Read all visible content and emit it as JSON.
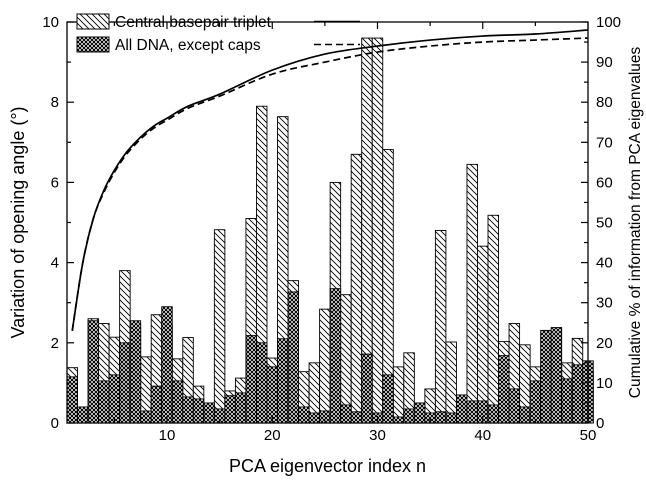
{
  "chart_data": {
    "type": "bar",
    "xlabel": "PCA eigenvector index n",
    "ylabel": "Variation of opening angle (°)",
    "y2label": "Cumulative % of information from PCA eigenvalues",
    "xlim": [
      0.5,
      50
    ],
    "ylim": [
      0,
      10
    ],
    "y2lim": [
      0,
      100
    ],
    "x_ticks": [
      10,
      20,
      30,
      40,
      50
    ],
    "y_ticks": [
      0,
      2,
      4,
      6,
      8,
      10
    ],
    "y2_ticks": [
      0,
      10,
      20,
      30,
      40,
      50,
      60,
      70,
      80,
      90,
      100
    ],
    "legend_position": "top-left",
    "x": [
      1,
      2,
      3,
      4,
      5,
      6,
      7,
      8,
      9,
      10,
      11,
      12,
      13,
      14,
      15,
      16,
      17,
      18,
      19,
      20,
      21,
      22,
      23,
      24,
      25,
      26,
      27,
      28,
      29,
      30,
      31,
      32,
      33,
      34,
      35,
      36,
      37,
      38,
      39,
      40,
      41,
      42,
      43,
      44,
      45,
      46,
      47,
      48,
      49,
      50
    ],
    "series": [
      {
        "name": "Central basepair triplet",
        "kind": "bar",
        "pattern": "hatch",
        "values": [
          1.38,
          0.4,
          2.6,
          2.48,
          2.14,
          3.8,
          2.44,
          1.65,
          2.7,
          2.44,
          1.6,
          2.13,
          0.92,
          0.5,
          4.82,
          0.8,
          1.12,
          5.1,
          7.9,
          1.62,
          7.64,
          3.55,
          1.28,
          1.5,
          2.84,
          6.0,
          3.2,
          6.7,
          9.6,
          9.6,
          6.82,
          1.4,
          1.75,
          0.45,
          0.85,
          4.8,
          2.02,
          0.55,
          6.45,
          4.41,
          5.18,
          2.03,
          2.48,
          1.95,
          1.4,
          1.3,
          0.7,
          1.5,
          2.11,
          1.3
        ]
      },
      {
        "name": "All DNA, except caps",
        "kind": "bar",
        "pattern": "crosshatch",
        "values": [
          1.15,
          0.4,
          2.55,
          1.05,
          1.2,
          2.0,
          2.55,
          0.3,
          0.92,
          2.9,
          1.05,
          0.65,
          0.6,
          0.5,
          0.35,
          0.68,
          0.75,
          2.18,
          2.0,
          1.4,
          2.1,
          3.27,
          0.4,
          0.25,
          0.3,
          3.35,
          0.45,
          0.28,
          1.72,
          0.25,
          1.2,
          0.15,
          0.35,
          0.5,
          0.25,
          0.28,
          0.25,
          0.7,
          0.55,
          0.55,
          0.45,
          1.68,
          0.85,
          0.4,
          1.05,
          2.31,
          2.38,
          1.1,
          1.45,
          1.55
        ]
      },
      {
        "name": "Central basepair triplet",
        "kind": "line",
        "style": "solid",
        "axis": "right",
        "x": [
          1,
          2,
          3,
          4,
          5,
          6,
          7,
          8,
          9,
          10,
          12,
          15,
          20,
          25,
          30,
          35,
          40,
          45,
          50
        ],
        "values": [
          23,
          40,
          51,
          58,
          63,
          67,
          70,
          72.5,
          74.5,
          76,
          79,
          82,
          88,
          92,
          94,
          95.5,
          96.5,
          97,
          98
        ]
      },
      {
        "name": "All DNA, except caps",
        "kind": "line",
        "style": "dashed",
        "axis": "right",
        "x": [
          1,
          2,
          3,
          4,
          5,
          6,
          7,
          8,
          9,
          10,
          12,
          15,
          20,
          25,
          30,
          35,
          40,
          45,
          50
        ],
        "values": [
          23,
          40,
          51,
          57.5,
          62.5,
          66.5,
          69.5,
          72,
          74,
          75.5,
          78.5,
          81.5,
          87,
          90,
          92.5,
          94,
          95,
          95.5,
          96
        ]
      }
    ]
  }
}
